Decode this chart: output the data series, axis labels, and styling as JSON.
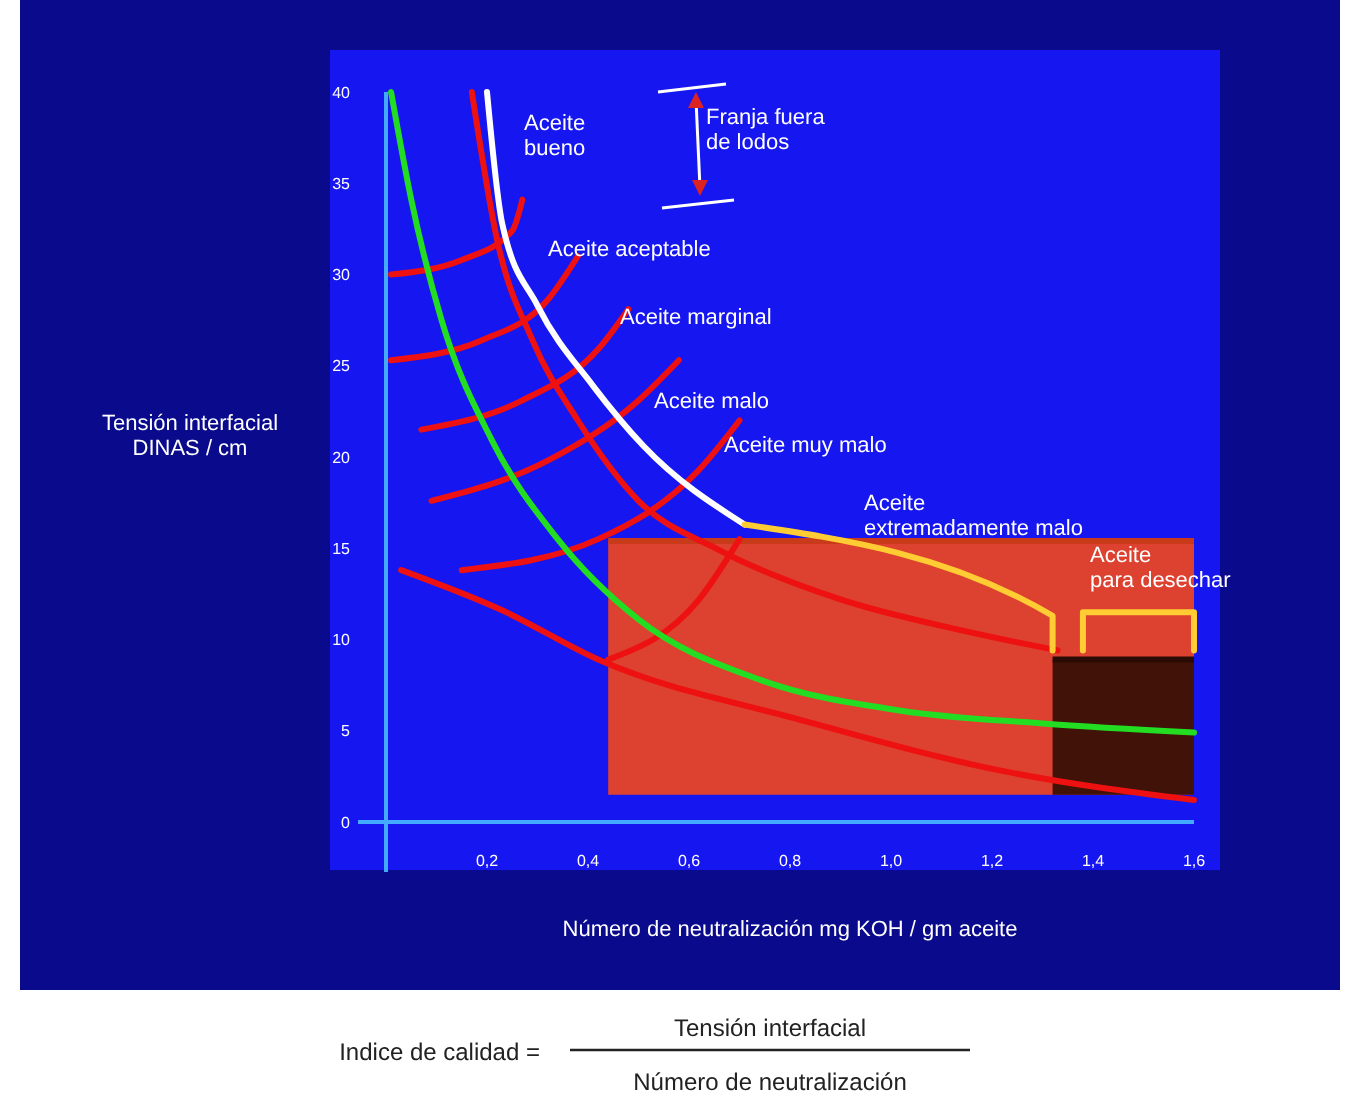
{
  "chart_data": {
    "type": "line",
    "ylabel": "Tensión interfacial\nDINAS / cm",
    "xlabel": "Número de neutralización mg KOH / gm aceite",
    "xlim": [
      0,
      1.6
    ],
    "ylim": [
      0,
      40
    ],
    "xticks": [
      {
        "value": 0.2,
        "label": "0,2"
      },
      {
        "value": 0.4,
        "label": "0,4"
      },
      {
        "value": 0.6,
        "label": "0,6"
      },
      {
        "value": 0.8,
        "label": "0,8"
      },
      {
        "value": 1.0,
        "label": "1,0"
      },
      {
        "value": 1.2,
        "label": "1,2"
      },
      {
        "value": 1.4,
        "label": "1,4"
      },
      {
        "value": 1.6,
        "label": "1,6"
      }
    ],
    "yticks": [
      0,
      5,
      10,
      15,
      20,
      25,
      30,
      35,
      40
    ],
    "grid": false,
    "marker": "none",
    "line_style": "solid",
    "series": [
      {
        "color": "#c83a1a",
        "x": [
          0.44,
          1.6
        ],
        "values": [
          15.4,
          15.4
        ],
        "lower": [
          1.5,
          1.5
        ],
        "upper": [
          15.4,
          15.4
        ]
      },
      {
        "color": "#2a0c04",
        "x": [
          1.32,
          1.6
        ],
        "values": [
          8.9,
          8.9
        ],
        "lower": [
          1.5,
          1.5
        ],
        "upper": [
          8.9,
          8.9
        ]
      },
      {
        "color": "#ee1111",
        "x": [
          0.03,
          0.23,
          0.42,
          0.82,
          1.22,
          1.6
        ],
        "values": [
          13.8,
          11.6,
          8.9,
          5.6,
          2.8,
          1.2
        ]
      },
      {
        "color": "#ee1111",
        "x": [
          0.01,
          0.15,
          0.25,
          0.27
        ],
        "values": [
          30.0,
          30.8,
          32.4,
          34.1
        ]
      },
      {
        "color": "#ee1111",
        "x": [
          0.01,
          0.19,
          0.32,
          0.38
        ],
        "values": [
          25.3,
          26.4,
          28.6,
          31.0
        ]
      },
      {
        "color": "#ee1111",
        "x": [
          0.07,
          0.27,
          0.42,
          0.48
        ],
        "values": [
          21.5,
          23.1,
          25.9,
          28.1
        ]
      },
      {
        "color": "#ee1111",
        "x": [
          0.09,
          0.32,
          0.5,
          0.58
        ],
        "values": [
          17.6,
          19.8,
          23.1,
          25.3
        ]
      },
      {
        "color": "#ee1111",
        "x": [
          0.15,
          0.42,
          0.62,
          0.7
        ],
        "values": [
          13.8,
          15.5,
          19.3,
          22.0
        ]
      },
      {
        "color": "#ee1111",
        "x": [
          0.44,
          0.62,
          0.7
        ],
        "values": [
          8.9,
          12.2,
          15.5
        ]
      },
      {
        "color": "#ee1111",
        "x": [
          0.17,
          0.22,
          0.29,
          0.38,
          0.5,
          0.66,
          0.9,
          1.14,
          1.33
        ],
        "values": [
          40,
          31.9,
          26.4,
          22.0,
          17.6,
          14.9,
          12.2,
          10.5,
          9.4
        ]
      },
      {
        "color": "#22dd22",
        "x": [
          0.01,
          0.05,
          0.11,
          0.21,
          0.34,
          0.5,
          0.74,
          1.02,
          1.3,
          1.6
        ],
        "values": [
          40,
          34.1,
          27.5,
          20.9,
          15.5,
          11.1,
          7.8,
          6.1,
          5.4,
          4.9
        ]
      },
      {
        "color": "#ffffff",
        "x": [
          0.2,
          0.23,
          0.3,
          0.41,
          0.51,
          0.71
        ],
        "values": [
          40,
          32.8,
          28.3,
          23.9,
          20.6,
          16.3
        ]
      },
      {
        "color": "#ffcc33",
        "x": [
          0.71,
          1.32,
          1.32
        ],
        "values": [
          16.3,
          11.3,
          9.4
        ]
      },
      {
        "color": "#ffcc33",
        "x": [
          1.38,
          1.38,
          1.6,
          1.6
        ],
        "values": [
          9.4,
          11.5,
          11.5,
          9.4
        ]
      }
    ],
    "annotations": [
      "Aceite\nbueno",
      "Franja fuera\nde lodos",
      "Aceite aceptable",
      "Aceite marginal",
      "Aceite malo",
      "Aceite muy malo",
      "Aceite\nextremadamente malo",
      "Aceite\npara desechar",
      "Indice de calidad =",
      "Tensión interfacial",
      "Número de neutralización"
    ]
  }
}
